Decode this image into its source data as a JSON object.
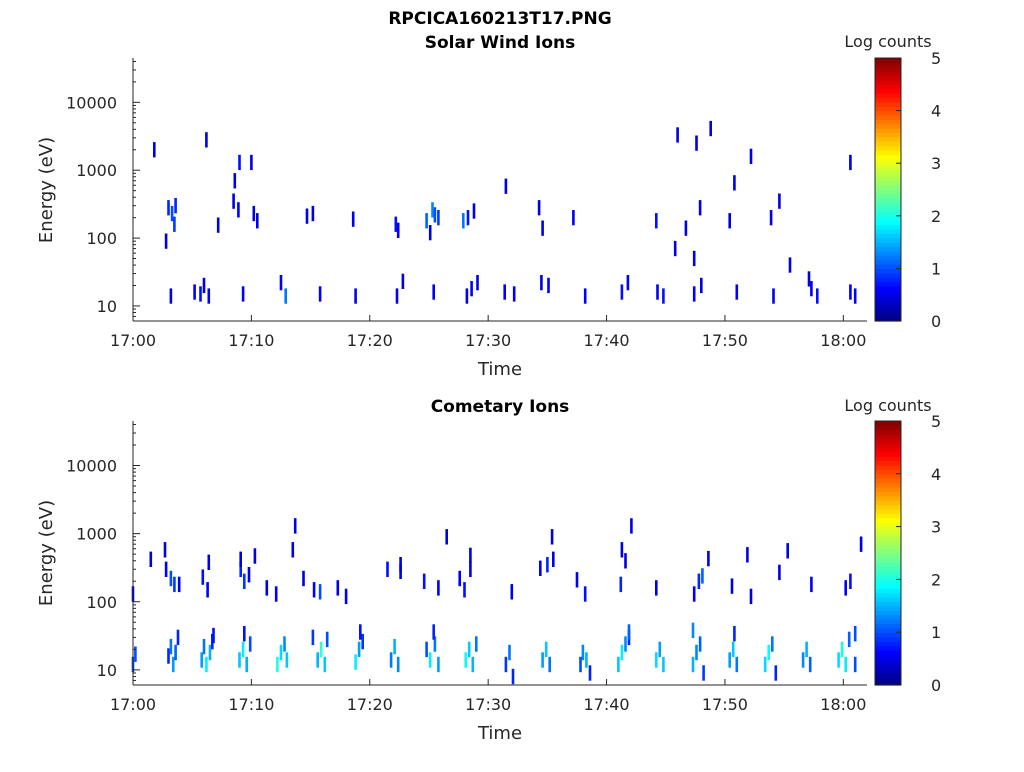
{
  "figure": {
    "title": "RPCICA160213T17.PNG"
  },
  "colors": {
    "axis": "#262626",
    "colormap": [
      "#00007f",
      "#0000ff",
      "#007fff",
      "#00ffff",
      "#7fff7f",
      "#ffff00",
      "#ff7f00",
      "#ff0000",
      "#7f0000"
    ]
  },
  "chart_data": [
    {
      "type": "heatmap",
      "title": "Solar Wind Ions",
      "xlabel": "Time",
      "ylabel": "Energy (eV)",
      "xlim": [
        "17:00",
        "18:02"
      ],
      "ylim": [
        6,
        45000
      ],
      "yscale": "log",
      "x_ticks": [
        "17:00",
        "17:10",
        "17:20",
        "17:30",
        "17:40",
        "17:50",
        "18:00"
      ],
      "y_ticks": [
        "10",
        "100",
        "1000",
        "10000"
      ],
      "colorbar": {
        "label": "Log counts",
        "range": [
          0,
          5
        ],
        "ticks": [
          "0",
          "1",
          "2",
          "3",
          "4",
          "5"
        ]
      },
      "points": [
        [
          3.2,
          14,
          0.5
        ],
        [
          5.2,
          16,
          0.6
        ],
        [
          5.7,
          15,
          0.7
        ],
        [
          6.0,
          20,
          0.5
        ],
        [
          6.4,
          14,
          0.6
        ],
        [
          9.3,
          15,
          0.6
        ],
        [
          12.5,
          22,
          0.6
        ],
        [
          12.9,
          14,
          1.2
        ],
        [
          15.8,
          15,
          0.6
        ],
        [
          18.8,
          14,
          0.6
        ],
        [
          22.3,
          14,
          0.6
        ],
        [
          22.8,
          23,
          0.5
        ],
        [
          25.4,
          16,
          0.6
        ],
        [
          28.2,
          14,
          0.6
        ],
        [
          28.6,
          18,
          0.6
        ],
        [
          29.1,
          22,
          0.5
        ],
        [
          31.4,
          16,
          0.6
        ],
        [
          32.2,
          15,
          0.6
        ],
        [
          34.5,
          22,
          0.5
        ],
        [
          35.1,
          20,
          0.6
        ],
        [
          38.2,
          14,
          0.6
        ],
        [
          41.3,
          16,
          0.7
        ],
        [
          41.8,
          22,
          0.6
        ],
        [
          44.3,
          16,
          0.6
        ],
        [
          44.8,
          14,
          0.7
        ],
        [
          47.4,
          15,
          0.6
        ],
        [
          48.0,
          20,
          0.5
        ],
        [
          51.0,
          16,
          0.6
        ],
        [
          54.1,
          14,
          0.6
        ],
        [
          57.3,
          18,
          0.6
        ],
        [
          57.8,
          14,
          0.7
        ],
        [
          60.6,
          16,
          0.6
        ],
        [
          61.0,
          14,
          0.6
        ],
        [
          3.0,
          280,
          0.8
        ],
        [
          3.3,
          230,
          1.0
        ],
        [
          3.5,
          160,
          0.9
        ],
        [
          3.6,
          300,
          0.8
        ],
        [
          7.2,
          155,
          0.5
        ],
        [
          8.5,
          350,
          0.5
        ],
        [
          8.9,
          260,
          0.6
        ],
        [
          10.2,
          230,
          0.5
        ],
        [
          10.5,
          180,
          0.5
        ],
        [
          14.7,
          210,
          0.6
        ],
        [
          15.2,
          230,
          0.5
        ],
        [
          18.6,
          190,
          0.5
        ],
        [
          22.2,
          160,
          0.7
        ],
        [
          22.4,
          130,
          0.6
        ],
        [
          24.8,
          180,
          1.1
        ],
        [
          25.3,
          260,
          1.3
        ],
        [
          25.5,
          220,
          1.0
        ],
        [
          25.8,
          200,
          0.9
        ],
        [
          27.9,
          180,
          1.2
        ],
        [
          28.3,
          200,
          0.7
        ],
        [
          28.8,
          250,
          0.5
        ],
        [
          34.3,
          280,
          0.5
        ],
        [
          34.6,
          140,
          0.5
        ],
        [
          37.2,
          200,
          0.6
        ],
        [
          44.2,
          180,
          0.7
        ],
        [
          45.8,
          70,
          0.5
        ],
        [
          46.7,
          140,
          0.5
        ],
        [
          47.4,
          50,
          0.5
        ],
        [
          47.9,
          280,
          0.5
        ],
        [
          50.4,
          180,
          0.5
        ],
        [
          53.9,
          200,
          0.5
        ],
        [
          54.6,
          350,
          0.5
        ],
        [
          55.5,
          40,
          0.5
        ],
        [
          57.1,
          25,
          0.5
        ],
        [
          1.8,
          2000,
          0.5
        ],
        [
          2.8,
          90,
          0.5
        ],
        [
          6.2,
          2800,
          0.5
        ],
        [
          8.6,
          700,
          0.5
        ],
        [
          9.0,
          1300,
          0.7
        ],
        [
          10.0,
          1300,
          0.5
        ],
        [
          31.5,
          580,
          0.5
        ],
        [
          46.0,
          3300,
          0.5
        ],
        [
          47.6,
          2500,
          0.5
        ],
        [
          48.8,
          4100,
          0.5
        ],
        [
          50.8,
          650,
          0.5
        ],
        [
          52.2,
          1600,
          0.5
        ],
        [
          60.6,
          1300,
          0.5
        ],
        [
          25.1,
          120,
          0.5
        ]
      ]
    },
    {
      "type": "heatmap",
      "title": "Cometary Ions",
      "xlabel": "Time",
      "ylabel": "Energy (eV)",
      "xlim": [
        "17:00",
        "18:02"
      ],
      "ylim": [
        6,
        45000
      ],
      "yscale": "log",
      "x_ticks": [
        "17:00",
        "17:10",
        "17:20",
        "17:30",
        "17:40",
        "17:50",
        "18:00"
      ],
      "y_ticks": [
        "10",
        "100",
        "1000",
        "10000"
      ],
      "colorbar": {
        "label": "Log counts",
        "range": [
          0,
          5
        ],
        "ticks": [
          "0",
          "1",
          "2",
          "3",
          "4",
          "5"
        ]
      },
      "points": [
        [
          0.0,
          12,
          1.0
        ],
        [
          0.2,
          17,
          1.0
        ],
        [
          3.0,
          16,
          0.8
        ],
        [
          3.2,
          22,
          1.2
        ],
        [
          3.4,
          12,
          1.4
        ],
        [
          3.6,
          18,
          1.1
        ],
        [
          5.8,
          14,
          1.4
        ],
        [
          6.0,
          22,
          1.2
        ],
        [
          6.2,
          12,
          1.8
        ],
        [
          6.5,
          18,
          1.5
        ],
        [
          6.7,
          26,
          0.8
        ],
        [
          9.0,
          14,
          1.6
        ],
        [
          9.3,
          20,
          1.8
        ],
        [
          9.6,
          12,
          1.5
        ],
        [
          9.9,
          24,
          1.0
        ],
        [
          12.2,
          12,
          2.0
        ],
        [
          12.5,
          18,
          1.7
        ],
        [
          12.8,
          24,
          1.3
        ],
        [
          13.0,
          14,
          1.6
        ],
        [
          15.6,
          14,
          1.5
        ],
        [
          15.9,
          20,
          2.1
        ],
        [
          16.2,
          12,
          1.6
        ],
        [
          16.4,
          28,
          1.0
        ],
        [
          18.8,
          13,
          1.8
        ],
        [
          19.1,
          20,
          1.4
        ],
        [
          19.4,
          26,
          0.9
        ],
        [
          21.8,
          14,
          1.2
        ],
        [
          22.1,
          22,
          1.5
        ],
        [
          22.4,
          12,
          1.3
        ],
        [
          24.8,
          20,
          1.0
        ],
        [
          25.1,
          14,
          1.8
        ],
        [
          25.5,
          24,
          1.2
        ],
        [
          25.8,
          12,
          1.4
        ],
        [
          28.1,
          14,
          1.9
        ],
        [
          28.4,
          20,
          1.6
        ],
        [
          28.7,
          12,
          1.5
        ],
        [
          29.0,
          24,
          1.2
        ],
        [
          31.5,
          12,
          0.9
        ],
        [
          31.8,
          18,
          1.2
        ],
        [
          32.1,
          8,
          0.8
        ],
        [
          34.6,
          14,
          1.4
        ],
        [
          34.9,
          20,
          1.6
        ],
        [
          35.2,
          12,
          1.2
        ],
        [
          37.8,
          12,
          1.0
        ],
        [
          38.0,
          18,
          1.3
        ],
        [
          38.3,
          14,
          1.5
        ],
        [
          38.6,
          9,
          0.8
        ],
        [
          41.0,
          12,
          1.6
        ],
        [
          41.3,
          18,
          1.8
        ],
        [
          41.6,
          24,
          1.3
        ],
        [
          41.9,
          30,
          0.8
        ],
        [
          44.2,
          14,
          1.7
        ],
        [
          44.5,
          20,
          1.4
        ],
        [
          44.8,
          12,
          1.6
        ],
        [
          47.3,
          12,
          1.5
        ],
        [
          47.6,
          18,
          1.3
        ],
        [
          47.9,
          24,
          1.1
        ],
        [
          48.2,
          9,
          0.9
        ],
        [
          50.4,
          14,
          1.4
        ],
        [
          50.7,
          20,
          1.6
        ],
        [
          51.0,
          12,
          1.2
        ],
        [
          53.4,
          12,
          1.7
        ],
        [
          53.7,
          18,
          1.9
        ],
        [
          54.0,
          24,
          1.2
        ],
        [
          54.3,
          9,
          0.8
        ],
        [
          56.6,
          14,
          1.3
        ],
        [
          56.9,
          20,
          1.5
        ],
        [
          57.2,
          12,
          1.1
        ],
        [
          59.6,
          14,
          1.7
        ],
        [
          59.9,
          20,
          2.0
        ],
        [
          60.2,
          12,
          1.8
        ],
        [
          60.5,
          28,
          1.1
        ],
        [
          61.0,
          12,
          1.0
        ],
        [
          0.0,
          130,
          0.5
        ],
        [
          2.8,
          300,
          0.6
        ],
        [
          3.2,
          220,
          1.0
        ],
        [
          3.5,
          180,
          0.9
        ],
        [
          5.9,
          230,
          0.7
        ],
        [
          6.3,
          150,
          0.6
        ],
        [
          6.4,
          380,
          0.5
        ],
        [
          9.1,
          300,
          0.8
        ],
        [
          9.4,
          200,
          0.9
        ],
        [
          9.8,
          250,
          0.6
        ],
        [
          11.3,
          160,
          0.5
        ],
        [
          12.1,
          130,
          0.6
        ],
        [
          14.4,
          220,
          0.5
        ],
        [
          15.3,
          150,
          0.6
        ],
        [
          15.8,
          140,
          1.0
        ],
        [
          17.3,
          160,
          0.5
        ],
        [
          18.0,
          120,
          0.6
        ],
        [
          21.5,
          300,
          0.7
        ],
        [
          22.6,
          280,
          0.5
        ],
        [
          24.6,
          200,
          0.7
        ],
        [
          25.8,
          160,
          0.6
        ],
        [
          27.6,
          220,
          0.6
        ],
        [
          28.0,
          150,
          0.7
        ],
        [
          28.5,
          300,
          0.5
        ],
        [
          32.0,
          140,
          0.5
        ],
        [
          34.4,
          310,
          0.6
        ],
        [
          35.0,
          350,
          0.8
        ],
        [
          35.5,
          420,
          0.5
        ],
        [
          37.5,
          210,
          0.6
        ],
        [
          38.2,
          130,
          0.7
        ],
        [
          41.2,
          180,
          0.8
        ],
        [
          41.6,
          400,
          0.5
        ],
        [
          44.2,
          160,
          0.5
        ],
        [
          47.4,
          130,
          0.6
        ],
        [
          47.8,
          200,
          0.8
        ],
        [
          48.1,
          240,
          1.1
        ],
        [
          50.6,
          170,
          0.5
        ],
        [
          52.2,
          120,
          0.5
        ],
        [
          54.6,
          270,
          0.5
        ],
        [
          57.3,
          180,
          0.6
        ],
        [
          60.2,
          160,
          0.6
        ],
        [
          60.6,
          200,
          0.7
        ],
        [
          1.5,
          420,
          0.5
        ],
        [
          2.7,
          580,
          0.5
        ],
        [
          9.1,
          420,
          0.5
        ],
        [
          10.3,
          470,
          0.5
        ],
        [
          13.5,
          580,
          0.5
        ],
        [
          22.6,
          350,
          0.5
        ],
        [
          26.5,
          900,
          0.5
        ],
        [
          28.5,
          480,
          0.5
        ],
        [
          35.4,
          900,
          0.5
        ],
        [
          41.3,
          580,
          0.5
        ],
        [
          42.1,
          1300,
          0.5
        ],
        [
          48.6,
          430,
          0.5
        ],
        [
          51.9,
          490,
          0.5
        ],
        [
          55.3,
          560,
          0.5
        ],
        [
          61.5,
          700,
          0.5
        ],
        [
          13.7,
          1300,
          0.5
        ],
        [
          3.9,
          180,
          0.6
        ],
        [
          3.8,
          30,
          0.8
        ],
        [
          6.8,
          32,
          0.7
        ],
        [
          9.4,
          34,
          0.7
        ],
        [
          15.2,
          30,
          0.9
        ],
        [
          19.2,
          36,
          0.7
        ],
        [
          25.4,
          36,
          0.8
        ],
        [
          41.9,
          36,
          1.1
        ],
        [
          47.3,
          38,
          1.3
        ],
        [
          50.8,
          34,
          0.8
        ],
        [
          61.0,
          34,
          1.0
        ]
      ]
    }
  ]
}
